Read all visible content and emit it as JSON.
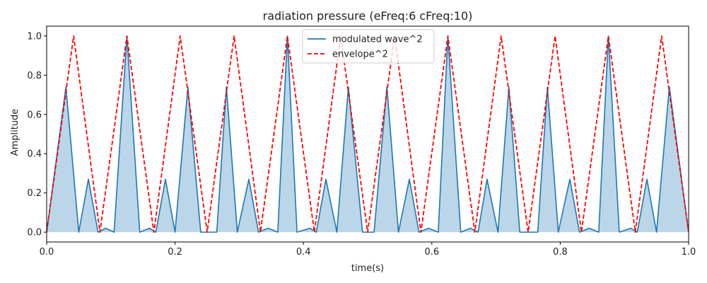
{
  "chart_data": {
    "type": "line",
    "title": "radiation pressure (eFreq:6 cFreq:10)",
    "xlabel": "time(s)",
    "ylabel": "Amplitude",
    "xlim": [
      0.0,
      1.0
    ],
    "ylim": [
      -0.05,
      1.05
    ],
    "x_ticks": [
      "0.0",
      "0.2",
      "0.4",
      "0.6",
      "0.8",
      "1.0"
    ],
    "y_ticks": [
      "0.0",
      "0.2",
      "0.4",
      "0.6",
      "0.8",
      "1.0"
    ],
    "legend_position": "top-center",
    "grid": false,
    "series": [
      {
        "name": "modulated wave^2",
        "style": "solid",
        "color": "#1f77b4",
        "fill": true,
        "fill_color": "#1f77b4",
        "x": [
          0.0,
          0.03,
          0.05,
          0.065,
          0.08,
          0.092,
          0.105,
          0.125,
          0.145,
          0.16,
          0.17,
          0.185,
          0.2,
          0.22,
          0.24,
          0.255,
          0.265,
          0.28,
          0.297,
          0.315,
          0.33,
          0.345,
          0.36,
          0.375,
          0.39,
          0.41,
          0.42,
          0.435,
          0.452,
          0.47,
          0.492,
          0.51,
          0.53,
          0.548,
          0.565,
          0.58,
          0.595,
          0.61,
          0.625,
          0.645,
          0.66,
          0.672,
          0.686,
          0.703,
          0.72,
          0.737,
          0.752,
          0.765,
          0.78,
          0.797,
          0.815,
          0.83,
          0.845,
          0.86,
          0.875,
          0.892,
          0.91,
          0.92,
          0.935,
          0.95,
          0.97,
          1.0
        ],
        "y": [
          0.0,
          0.74,
          0.0,
          0.27,
          0.0,
          0.02,
          0.0,
          1.0,
          0.0,
          0.02,
          0.0,
          0.27,
          0.0,
          0.74,
          0.0,
          0.0,
          0.0,
          0.74,
          0.0,
          0.27,
          0.0,
          0.02,
          0.0,
          1.0,
          0.0,
          0.02,
          0.0,
          0.27,
          0.0,
          0.74,
          0.0,
          0.0,
          0.74,
          0.0,
          0.27,
          0.0,
          0.02,
          0.0,
          1.0,
          0.0,
          0.02,
          0.0,
          0.27,
          0.0,
          0.74,
          0.0,
          0.0,
          0.0,
          0.74,
          0.0,
          0.27,
          0.0,
          0.02,
          0.0,
          1.0,
          0.0,
          0.02,
          0.0,
          0.27,
          0.0,
          0.74,
          0.0
        ]
      },
      {
        "name": "envelope^2",
        "style": "dashed",
        "color": "#ff0000",
        "fill": false,
        "x": [
          0.0,
          0.042,
          0.083,
          0.125,
          0.167,
          0.208,
          0.25,
          0.292,
          0.333,
          0.375,
          0.417,
          0.458,
          0.5,
          0.542,
          0.583,
          0.625,
          0.667,
          0.708,
          0.75,
          0.792,
          0.833,
          0.875,
          0.917,
          0.958,
          1.0
        ],
        "y": [
          0.0,
          1.0,
          0.0,
          1.0,
          0.0,
          1.0,
          0.0,
          1.0,
          0.0,
          1.0,
          0.0,
          1.0,
          0.0,
          1.0,
          0.0,
          1.0,
          0.0,
          1.0,
          0.0,
          1.0,
          0.0,
          1.0,
          0.0,
          1.0,
          0.0
        ]
      }
    ]
  }
}
